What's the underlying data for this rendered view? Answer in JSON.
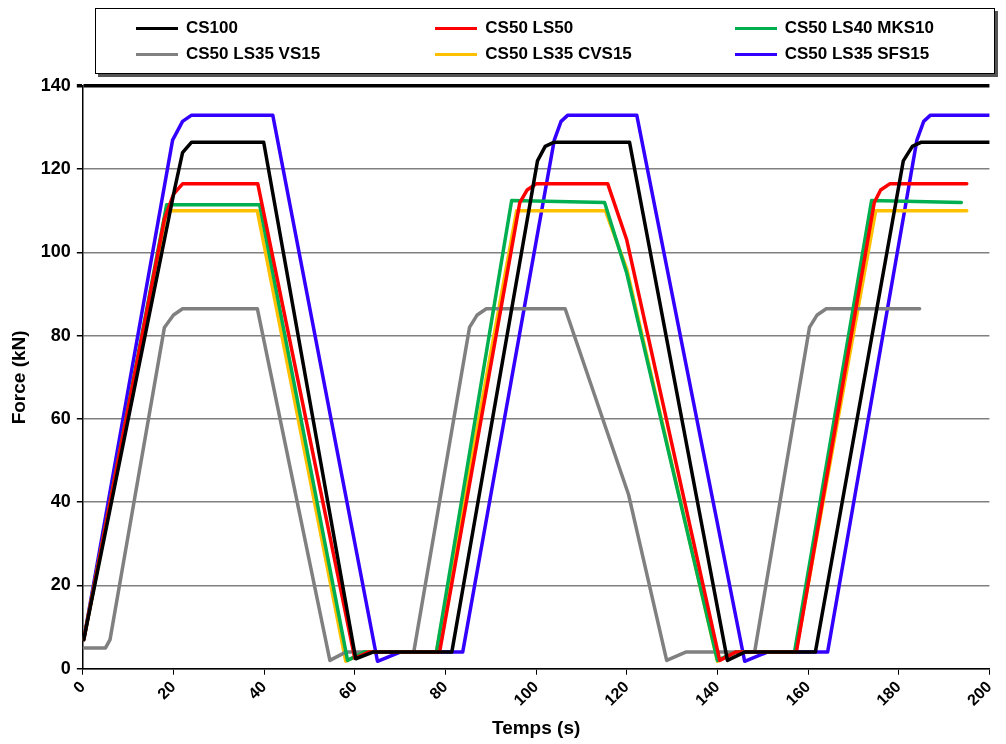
{
  "chart_data": {
    "type": "line",
    "xlabel": "Temps (s)",
    "ylabel": "Force (kN)",
    "xlim": [
      0,
      200
    ],
    "xticks": [
      0,
      20,
      40,
      60,
      80,
      100,
      120,
      140,
      160,
      180,
      200
    ],
    "ylim": [
      0,
      140
    ],
    "yticks": [
      0,
      20,
      40,
      60,
      80,
      100,
      120,
      140
    ],
    "grid": "y",
    "legend": "top",
    "marker": "none",
    "line_style": "solid",
    "series": [
      {
        "name": "CS100",
        "color": "#000000",
        "x": [
          0.2,
          20.3,
          22,
          24,
          39.9,
          60.2,
          64,
          81.4,
          100.3,
          102,
          104,
          120.6,
          142.2,
          146,
          161.6,
          181,
          183,
          185,
          200
        ],
        "values": [
          7,
          115.5,
          124,
          126.5,
          126.5,
          2.4,
          4,
          4,
          122,
          125.5,
          126.5,
          126.5,
          2,
          4,
          4,
          122,
          125.5,
          126.5,
          126.5
        ]
      },
      {
        "name": "CS50 LS50",
        "color": "#ff0000",
        "x": [
          0.2,
          18,
          20,
          22,
          38.6,
          60,
          63,
          78.7,
          96.4,
          98,
          100,
          115.8,
          120,
          140.5,
          144,
          157.4,
          174.6,
          176,
          178,
          195
        ],
        "values": [
          7,
          108,
          114,
          116.5,
          116.5,
          2.5,
          4,
          4,
          112,
          115,
          116.5,
          116.5,
          103,
          2,
          4,
          4,
          112,
          115,
          116.5,
          116.5
        ]
      },
      {
        "name": "CS50 LS40 MKS10",
        "color": "#00b050",
        "x": [
          0.2,
          18.5,
          39,
          58.4,
          62,
          78,
          94.6,
          115.1,
          120,
          140,
          144,
          157,
          174,
          193.8
        ],
        "values": [
          7,
          111.5,
          111.5,
          2,
          4,
          4,
          112.5,
          112,
          95,
          2,
          4,
          4,
          112.5,
          112
        ]
      },
      {
        "name": "CS50 LS35 VS15",
        "color": "#808080",
        "x": [
          0,
          5,
          6,
          18,
          20,
          22,
          38.5,
          54.5,
          58,
          73,
          85.3,
          87,
          89,
          106.4,
          120.4,
          128.8,
          133,
          148.2,
          160.3,
          162,
          164,
          184.6
        ],
        "values": [
          5,
          5,
          7,
          82,
          85,
          86.5,
          86.5,
          2,
          4,
          4,
          82,
          85,
          86.5,
          86.5,
          41.8,
          2,
          4,
          4,
          82,
          85,
          86.5,
          86.5
        ]
      },
      {
        "name": "CS50 LS35 CVS15",
        "color": "#ffc000",
        "x": [
          0.2,
          18.5,
          38.5,
          58,
          62,
          78,
          95.7,
          115.3,
          120,
          140,
          144,
          157.3,
          174.9,
          195
        ],
        "values": [
          7,
          110,
          110,
          1.8,
          4,
          4,
          110,
          110,
          96,
          1.8,
          4,
          4,
          110,
          110
        ]
      },
      {
        "name": "CS50 LS35 SFS15",
        "color": "#3300ff",
        "x": [
          0.2,
          19.8,
          22,
          24,
          41.9,
          65,
          70,
          83.8,
          104,
          105.5,
          107,
          122.2,
          146,
          151,
          164.3,
          184,
          185.5,
          187,
          200
        ],
        "values": [
          7,
          127,
          131.5,
          133,
          133,
          1.8,
          4,
          4,
          127,
          131.5,
          133,
          133,
          1.8,
          4,
          4,
          127,
          131.5,
          133,
          133
        ]
      }
    ]
  }
}
